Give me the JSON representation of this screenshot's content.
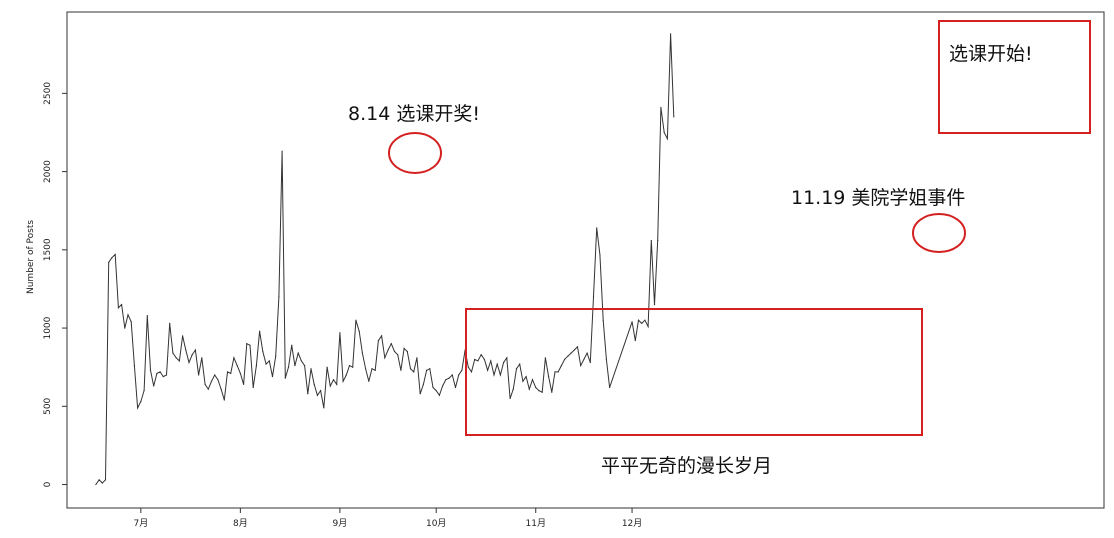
{
  "chart_data": {
    "type": "line",
    "ylabel": "Number of Posts",
    "xlabel": "",
    "title": "",
    "ylim": [
      -150,
      3020
    ],
    "yticks": [
      0,
      500,
      1000,
      1500,
      2000,
      2500
    ],
    "xlim": [
      -23,
      300
    ],
    "xticks": [
      {
        "label": "7月",
        "day": 0
      },
      {
        "label": "8月",
        "day": 31
      },
      {
        "label": "9月",
        "day": 62
      },
      {
        "label": "10月",
        "day": 92
      },
      {
        "label": "11月",
        "day": 123
      },
      {
        "label": "12月",
        "day": 153
      }
    ],
    "series": [
      {
        "color": "#333333",
        "points": [
          [
            -14,
            0
          ],
          [
            -13,
            30
          ],
          [
            -12,
            10
          ],
          [
            -11,
            30
          ],
          [
            -10,
            1420
          ],
          [
            -9,
            1450
          ],
          [
            -8,
            1470
          ],
          [
            -7,
            1130
          ],
          [
            -6,
            1150
          ],
          [
            -5,
            1000
          ],
          [
            -4,
            1085
          ],
          [
            -3,
            1040
          ],
          [
            -2,
            760
          ],
          [
            -1,
            490
          ],
          [
            0,
            530
          ],
          [
            1,
            600
          ],
          [
            2,
            1080
          ],
          [
            3,
            730
          ],
          [
            4,
            630
          ],
          [
            5,
            710
          ],
          [
            6,
            720
          ],
          [
            7,
            690
          ],
          [
            8,
            700
          ],
          [
            9,
            1030
          ],
          [
            10,
            840
          ],
          [
            11,
            810
          ],
          [
            12,
            790
          ],
          [
            13,
            950
          ],
          [
            14,
            860
          ],
          [
            15,
            780
          ],
          [
            16,
            830
          ],
          [
            17,
            860
          ],
          [
            18,
            700
          ],
          [
            19,
            810
          ],
          [
            20,
            640
          ],
          [
            21,
            610
          ],
          [
            22,
            660
          ],
          [
            23,
            700
          ],
          [
            24,
            670
          ],
          [
            25,
            610
          ],
          [
            26,
            540
          ],
          [
            27,
            720
          ],
          [
            28,
            710
          ],
          [
            29,
            810
          ],
          [
            30,
            760
          ],
          [
            31,
            710
          ],
          [
            32,
            640
          ],
          [
            33,
            900
          ],
          [
            34,
            890
          ],
          [
            35,
            620
          ],
          [
            36,
            760
          ],
          [
            37,
            980
          ],
          [
            38,
            850
          ],
          [
            39,
            770
          ],
          [
            40,
            790
          ],
          [
            41,
            690
          ],
          [
            42,
            820
          ],
          [
            43,
            1200
          ],
          [
            44,
            2130
          ],
          [
            45,
            680
          ],
          [
            46,
            750
          ],
          [
            47,
            890
          ],
          [
            48,
            760
          ],
          [
            49,
            840
          ],
          [
            50,
            790
          ],
          [
            51,
            760
          ],
          [
            52,
            580
          ],
          [
            53,
            740
          ],
          [
            54,
            640
          ],
          [
            55,
            570
          ],
          [
            56,
            600
          ],
          [
            57,
            490
          ],
          [
            58,
            750
          ],
          [
            59,
            630
          ],
          [
            60,
            670
          ],
          [
            61,
            640
          ],
          [
            62,
            970
          ],
          [
            63,
            660
          ],
          [
            64,
            700
          ],
          [
            65,
            760
          ],
          [
            66,
            750
          ],
          [
            67,
            1050
          ],
          [
            68,
            980
          ],
          [
            69,
            840
          ],
          [
            70,
            740
          ],
          [
            71,
            660
          ],
          [
            72,
            740
          ],
          [
            73,
            730
          ],
          [
            74,
            920
          ],
          [
            75,
            950
          ],
          [
            76,
            810
          ],
          [
            77,
            860
          ],
          [
            78,
            900
          ],
          [
            79,
            850
          ],
          [
            80,
            830
          ],
          [
            81,
            730
          ],
          [
            82,
            870
          ],
          [
            83,
            850
          ],
          [
            84,
            740
          ],
          [
            85,
            720
          ],
          [
            86,
            810
          ],
          [
            87,
            580
          ],
          [
            88,
            640
          ],
          [
            89,
            730
          ],
          [
            90,
            740
          ],
          [
            91,
            620
          ],
          [
            92,
            600
          ],
          [
            93,
            570
          ],
          [
            94,
            630
          ],
          [
            95,
            670
          ],
          [
            96,
            680
          ],
          [
            97,
            700
          ],
          [
            98,
            620
          ],
          [
            99,
            700
          ],
          [
            100,
            730
          ],
          [
            101,
            860
          ],
          [
            102,
            750
          ],
          [
            103,
            720
          ],
          [
            104,
            800
          ],
          [
            105,
            790
          ],
          [
            106,
            830
          ],
          [
            107,
            800
          ],
          [
            108,
            730
          ],
          [
            109,
            790
          ],
          [
            110,
            700
          ],
          [
            111,
            770
          ],
          [
            112,
            700
          ],
          [
            113,
            780
          ],
          [
            114,
            810
          ],
          [
            115,
            550
          ],
          [
            116,
            610
          ],
          [
            117,
            740
          ],
          [
            118,
            770
          ],
          [
            119,
            660
          ],
          [
            120,
            690
          ],
          [
            121,
            610
          ],
          [
            122,
            670
          ],
          [
            123,
            620
          ],
          [
            124,
            600
          ],
          [
            125,
            590
          ],
          [
            126,
            810
          ],
          [
            127,
            690
          ],
          [
            128,
            590
          ],
          [
            129,
            720
          ],
          [
            130,
            720
          ],
          [
            131,
            760
          ],
          [
            132,
            800
          ],
          [
            133,
            820
          ],
          [
            134,
            840
          ],
          [
            135,
            860
          ],
          [
            136,
            880
          ],
          [
            137,
            760
          ],
          [
            138,
            800
          ],
          [
            139,
            840
          ],
          [
            140,
            780
          ],
          [
            141,
            1200
          ],
          [
            142,
            1640
          ],
          [
            143,
            1470
          ],
          [
            144,
            1050
          ],
          [
            145,
            800
          ],
          [
            146,
            620
          ],
          [
            153,
            1040
          ],
          [
            154,
            920
          ],
          [
            155,
            1050
          ],
          [
            156,
            1030
          ],
          [
            157,
            1050
          ],
          [
            158,
            1010
          ],
          [
            159,
            1560
          ],
          [
            160,
            1150
          ],
          [
            161,
            1560
          ],
          [
            162,
            2410
          ],
          [
            163,
            2250
          ],
          [
            164,
            2210
          ],
          [
            165,
            2880
          ],
          [
            166,
            2350
          ]
        ]
      }
    ],
    "annotations": {
      "peak1": "8.14  选课开奖!",
      "peak2": "11.19  美院学姐事件",
      "box_low": "平平无奇的漫长岁月",
      "box_end": "选课开始!"
    },
    "annotation_color": "#d42020"
  }
}
